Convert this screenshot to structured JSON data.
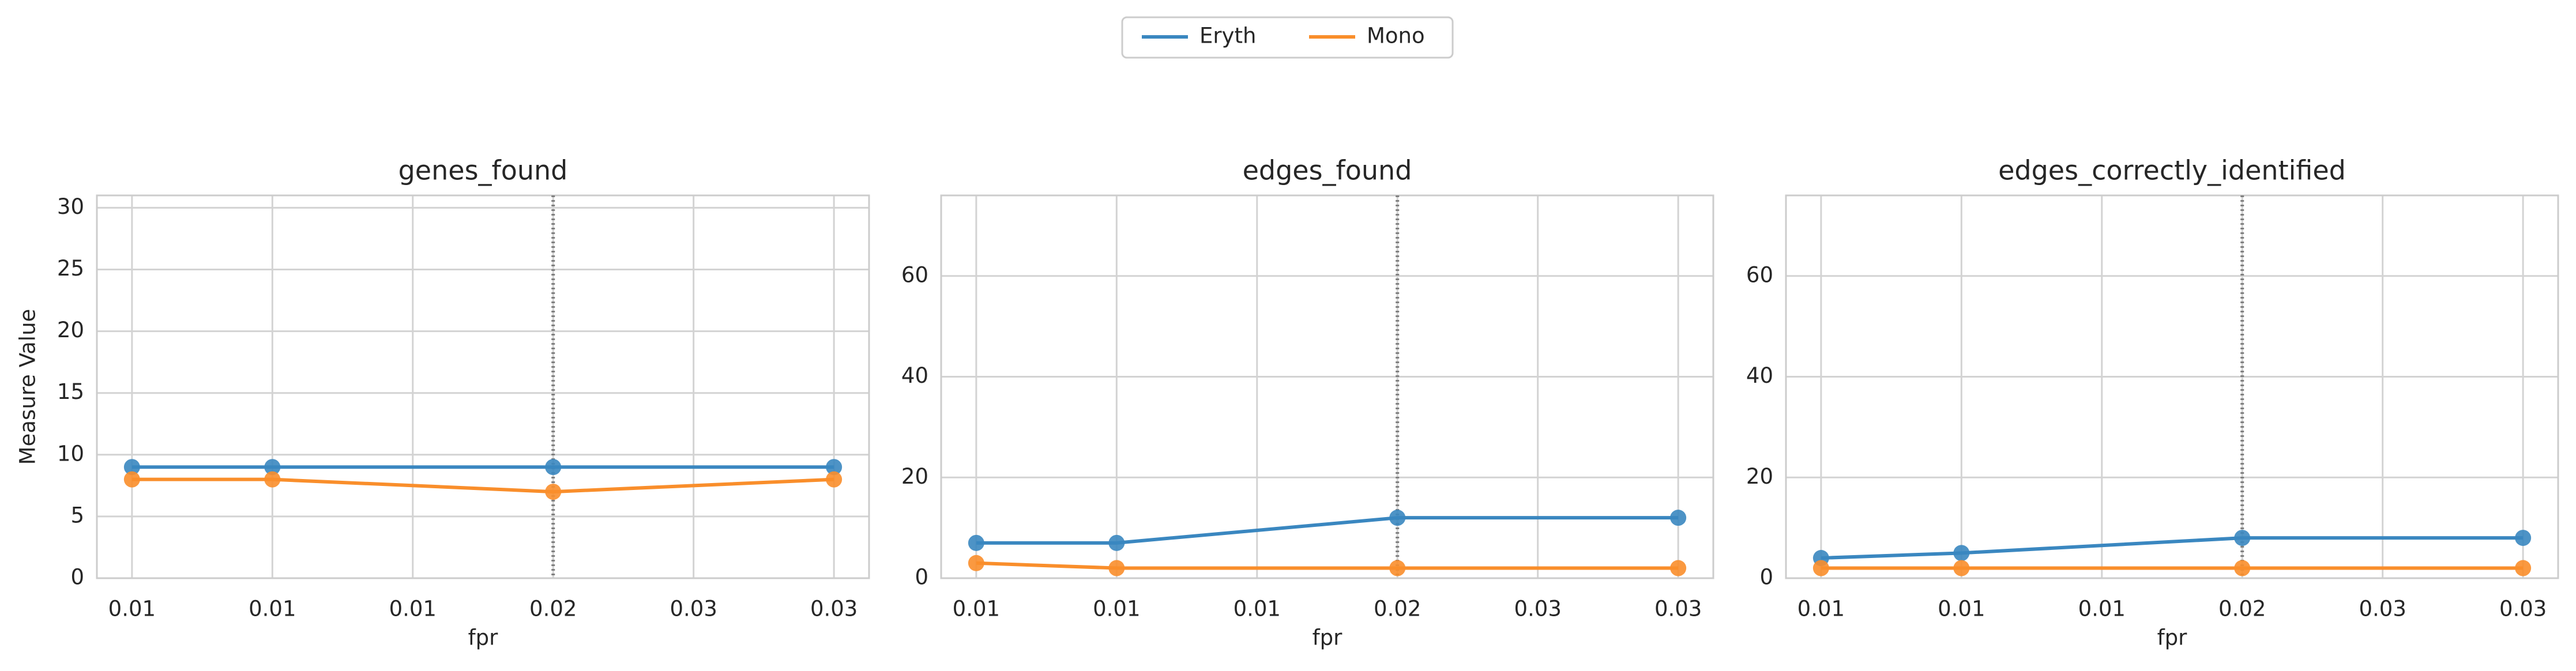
{
  "chart_data": [
    {
      "type": "line",
      "title": "genes_found",
      "xlabel": "fpr",
      "ylabel": "Measure Value",
      "x": [
        0.005,
        0.01,
        0.02,
        0.03
      ],
      "series": [
        {
          "name": "Eryth",
          "color": "#3a87c0",
          "values": [
            9,
            9,
            9,
            9
          ]
        },
        {
          "name": "Mono",
          "color": "#f98e2b",
          "values": [
            8,
            8,
            7,
            8
          ]
        }
      ],
      "xlim": [
        0.00375,
        0.03125
      ],
      "xticks": [
        {
          "value": 0.005,
          "label": "0.01"
        },
        {
          "value": 0.01,
          "label": "0.01"
        },
        {
          "value": 0.015,
          "label": "0.01"
        },
        {
          "value": 0.02,
          "label": "0.02"
        },
        {
          "value": 0.025,
          "label": "0.03"
        },
        {
          "value": 0.03,
          "label": "0.03"
        }
      ],
      "ylim": [
        0,
        31
      ],
      "yticks": [
        0,
        5,
        10,
        15,
        20,
        25,
        30
      ],
      "vline": 0.02,
      "grid": true
    },
    {
      "type": "line",
      "title": "edges_found",
      "xlabel": "fpr",
      "x": [
        0.005,
        0.01,
        0.02,
        0.03
      ],
      "series": [
        {
          "name": "Eryth",
          "color": "#3a87c0",
          "values": [
            7,
            7,
            12,
            12
          ]
        },
        {
          "name": "Mono",
          "color": "#f98e2b",
          "values": [
            3,
            2,
            2,
            2
          ]
        }
      ],
      "xlim": [
        0.00375,
        0.03125
      ],
      "xticks": [
        {
          "value": 0.005,
          "label": "0.01"
        },
        {
          "value": 0.01,
          "label": "0.01"
        },
        {
          "value": 0.015,
          "label": "0.01"
        },
        {
          "value": 0.02,
          "label": "0.02"
        },
        {
          "value": 0.025,
          "label": "0.03"
        },
        {
          "value": 0.03,
          "label": "0.03"
        }
      ],
      "ylim": [
        0,
        76
      ],
      "yticks": [
        0,
        20,
        40,
        60
      ],
      "vline": 0.02,
      "grid": true
    },
    {
      "type": "line",
      "title": "edges_correctly_identified",
      "xlabel": "fpr",
      "x": [
        0.005,
        0.01,
        0.02,
        0.03
      ],
      "series": [
        {
          "name": "Eryth",
          "color": "#3a87c0",
          "values": [
            4,
            5,
            8,
            8
          ]
        },
        {
          "name": "Mono",
          "color": "#f98e2b",
          "values": [
            2,
            2,
            2,
            2
          ]
        }
      ],
      "xlim": [
        0.00375,
        0.03125
      ],
      "xticks": [
        {
          "value": 0.005,
          "label": "0.01"
        },
        {
          "value": 0.01,
          "label": "0.01"
        },
        {
          "value": 0.015,
          "label": "0.01"
        },
        {
          "value": 0.02,
          "label": "0.02"
        },
        {
          "value": 0.025,
          "label": "0.03"
        },
        {
          "value": 0.03,
          "label": "0.03"
        }
      ],
      "ylim": [
        0,
        76
      ],
      "yticks": [
        0,
        20,
        40,
        60
      ],
      "vline": 0.02,
      "grid": true
    }
  ]
}
